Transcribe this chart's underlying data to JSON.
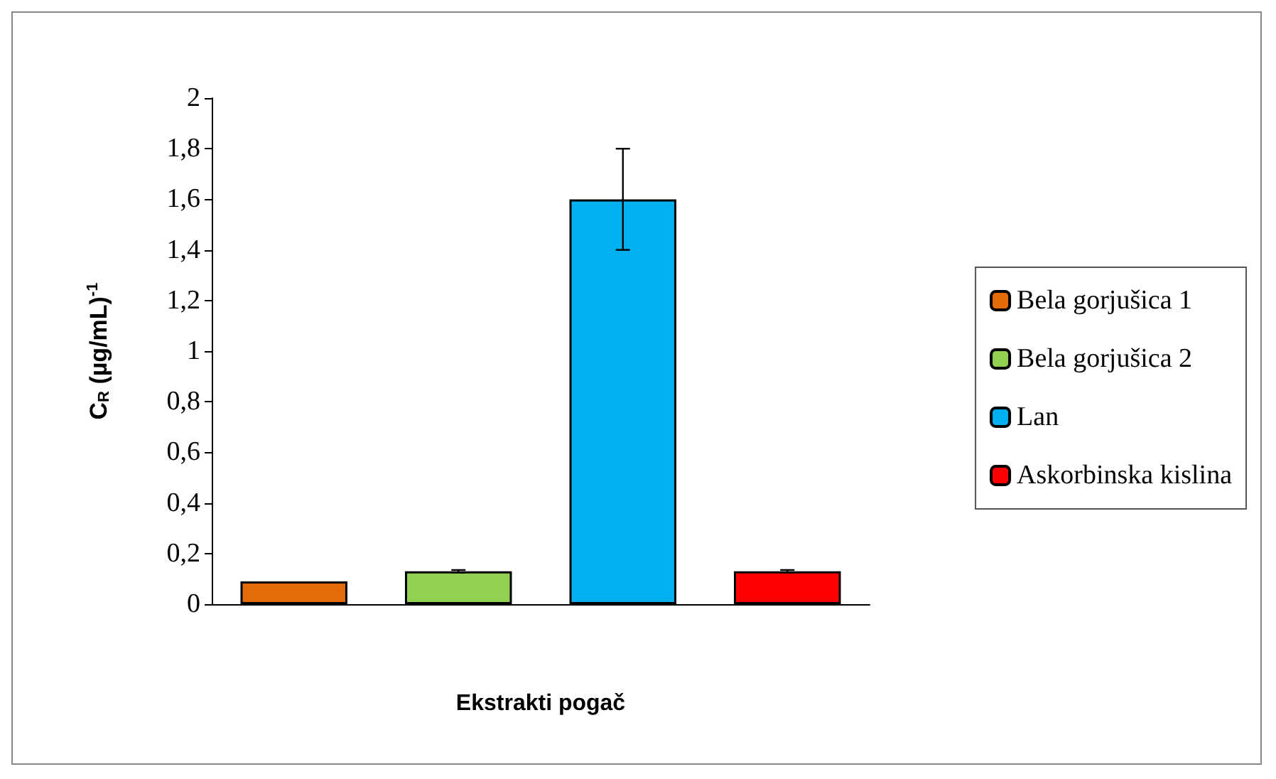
{
  "chart_data": {
    "type": "bar",
    "xlabel": "Ekstrakti pogač",
    "ylabel": "C$_{R}$ (µg/mL)$^{-1}$",
    "categories": [
      null,
      null,
      null,
      null
    ],
    "series": [
      {
        "name": "Bela gorjušica 1",
        "color": "#e36c09",
        "values": [
          0.09,
          null,
          null,
          null
        ],
        "errors": [
          null,
          null,
          null,
          null
        ]
      },
      {
        "name": "Bela gorjušica 2",
        "color": "#92d050",
        "values": [
          null,
          0.13,
          null,
          null
        ],
        "errors": [
          null,
          0.005,
          null,
          null
        ]
      },
      {
        "name": "Lan",
        "color": "#00b0f0",
        "values": [
          null,
          null,
          1.6,
          null
        ],
        "errors": [
          null,
          null,
          0.2,
          null
        ]
      },
      {
        "name": "Askorbinska kislina",
        "color": "#ff0000",
        "values": [
          null,
          null,
          null,
          0.13
        ],
        "errors": [
          null,
          null,
          null,
          0.005
        ]
      }
    ],
    "ylim": [
      0,
      2
    ],
    "yticks": [
      0,
      {
        "value": 0.2,
        "label": "0,2"
      },
      {
        "value": 0.4,
        "label": "0,4"
      },
      {
        "value": 0.6,
        "label": "0,6"
      },
      {
        "value": 0.8,
        "label": "0,8"
      },
      1,
      {
        "value": 1.2,
        "label": "1,2"
      },
      {
        "value": 1.4,
        "label": "1,4"
      },
      {
        "value": 1.6,
        "label": "1,6"
      },
      {
        "value": 1.8,
        "label": "1,8"
      },
      2
    ],
    "grid": false,
    "legend": "right"
  }
}
